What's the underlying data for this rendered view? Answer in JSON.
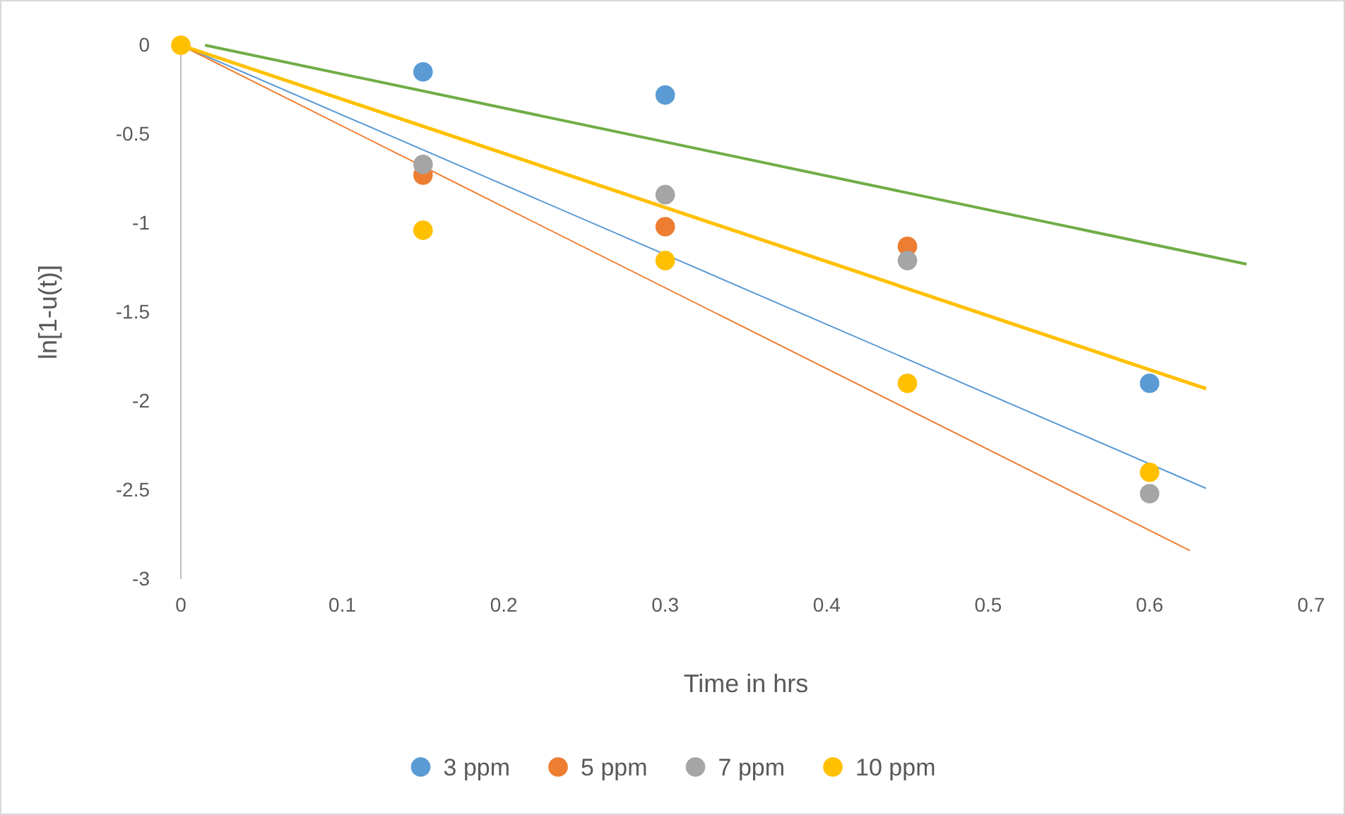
{
  "chart_data": {
    "type": "scatter",
    "xlabel": "Time in hrs",
    "ylabel": "ln[1-u(t)]",
    "xlim": [
      0,
      0.7
    ],
    "ylim": [
      -3,
      0
    ],
    "xticks": [
      0,
      0.1,
      0.2,
      0.3,
      0.4,
      0.5,
      0.6,
      0.7
    ],
    "yticks": [
      0,
      -0.5,
      -1,
      -1.5,
      -2,
      -2.5,
      -3
    ],
    "grid": false,
    "legend": "bottom",
    "marker": "circle",
    "x": [
      0,
      0.15,
      0.3,
      0.45,
      0.6
    ],
    "series": [
      {
        "name": "3 ppm",
        "color": "#5b9bd5",
        "values": [
          null,
          -0.15,
          -0.28,
          null,
          -1.9
        ]
      },
      {
        "name": "5 ppm",
        "color": "#ed7d31",
        "values": [
          null,
          -0.73,
          -1.02,
          -1.13,
          null
        ]
      },
      {
        "name": "7 ppm",
        "color": "#a5a5a5",
        "values": [
          null,
          -0.67,
          -0.84,
          -1.21,
          -2.52
        ]
      },
      {
        "name": "10 ppm",
        "color": "#ffc000",
        "values": [
          0,
          -1.04,
          -1.21,
          -1.9,
          -2.4
        ]
      },
      {
        "type": "line",
        "color": "#70ad47",
        "x": [
          0.015,
          0.66
        ],
        "values": [
          0,
          -1.23
        ],
        "marker": "none"
      },
      {
        "type": "line",
        "color": "#5b9bd5",
        "x": [
          0,
          0.635
        ],
        "values": [
          0,
          -2.49
        ],
        "marker": "none"
      },
      {
        "type": "line",
        "color": "#ed7d31",
        "x": [
          0,
          0.625
        ],
        "values": [
          0,
          -2.84
        ],
        "marker": "none"
      },
      {
        "type": "line",
        "color": "#ffc000",
        "x": [
          0,
          0.635
        ],
        "values": [
          0,
          -1.93
        ],
        "marker": "none"
      }
    ]
  }
}
